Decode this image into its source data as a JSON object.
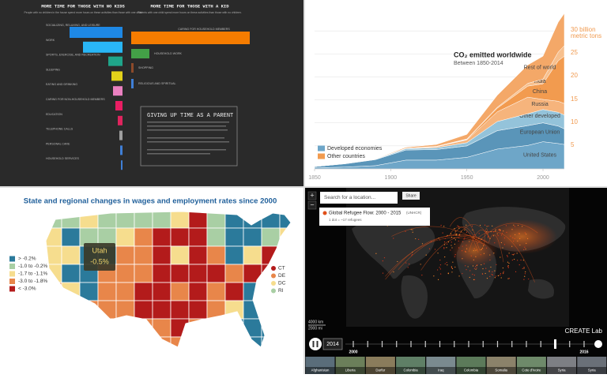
{
  "chart_data": [
    {
      "type": "bar",
      "direction": "left",
      "title": "MORE TIME FOR THOSE WITH NO KIDS",
      "subtitle": "People with no children in the house spend more hours on these activities than those with one child",
      "categories": [
        "SOCIALIZING, RELAXING, AND LEISURE",
        "WORK",
        "SPORTS, EXERCISE, AND RECREATION",
        "SLEEPING",
        "EATING AND DRINKING",
        "CARING FOR NON-HOUSEHOLD MEMBERS",
        "EDUCATION",
        "TELEPHONE CALLS",
        "PERSONAL CARE",
        "HOUSEHOLD SERVICES"
      ],
      "values": [
        67,
        50,
        18,
        14,
        12,
        9,
        6,
        4,
        3,
        2
      ],
      "colors": [
        "#1e88e5",
        "#29b6f6",
        "#1fa58a",
        "#e3d21a",
        "#ea80c0",
        "#e91e63",
        "#e0245e",
        "#9e9e9e",
        "#3f7fd6",
        "#3f7fd6"
      ],
      "xlim": [
        0,
        150
      ]
    },
    {
      "type": "bar",
      "direction": "right",
      "title": "MORE TIME FOR THOSE WITH A KID",
      "subtitle": "Parents with one child spend more hours on these activities than those with no children.",
      "categories": [
        "CARING FOR HOUSEHOLD MEMBERS",
        "HOUSEHOLD WORK",
        "SHOPPING",
        "RELIGIOUS AND SPIRITUAL"
      ],
      "values": [
        150,
        23,
        3,
        3
      ],
      "colors": [
        "#f57c00",
        "#43a047",
        "#8d4a2a",
        "#3f7fd6"
      ],
      "xlim": [
        0,
        150
      ]
    },
    {
      "type": "area",
      "stacked": true,
      "title": "CO₂ emitted worldwide",
      "subtitle": "Between 1850-2014",
      "x": [
        1850,
        1870,
        1890,
        1910,
        1930,
        1950,
        1970,
        1990,
        2000,
        2010,
        2014
      ],
      "xlim": [
        1850,
        2014
      ],
      "xticks": [
        1850,
        1900,
        1950,
        2000
      ],
      "ylim": [
        0,
        35
      ],
      "yticks": [
        5,
        10,
        15,
        20,
        25,
        {
          "value": 30,
          "label": "30 billion metric tons"
        }
      ],
      "series": [
        {
          "name": "United States",
          "color": "#6ea6c8",
          "values": [
            0.2,
            0.4,
            0.7,
            1.9,
            1.9,
            2.5,
            4.3,
            5.1,
            5.9,
            5.5,
            5.3
          ]
        },
        {
          "name": "European Union",
          "color": "#5a95b9",
          "values": [
            0.3,
            0.7,
            1.3,
            2.2,
            2.3,
            2.5,
            4.0,
            4.3,
            4.1,
            3.8,
            3.4
          ]
        },
        {
          "name": "Other developed",
          "color": "#94c3da",
          "values": [
            0,
            0.05,
            0.1,
            0.3,
            0.4,
            0.7,
            2.0,
            2.6,
            2.9,
            3.0,
            3.0
          ]
        },
        {
          "name": "Russia",
          "color": "#f6b47c",
          "values": [
            0,
            0,
            0.05,
            0.1,
            0.2,
            0.6,
            2.1,
            3.6,
            2.2,
            2.4,
            2.5
          ]
        },
        {
          "name": "China",
          "color": "#f29b4f",
          "values": [
            0,
            0,
            0,
            0,
            0.1,
            0.1,
            0.8,
            2.4,
            3.4,
            8.8,
            10.3
          ]
        },
        {
          "name": "India",
          "color": "#f7c08e",
          "values": [
            0,
            0,
            0,
            0,
            0,
            0.1,
            0.2,
            0.6,
            1.0,
            1.9,
            2.3
          ]
        },
        {
          "name": "Rest of world",
          "color": "#f4a868",
          "values": [
            0,
            0,
            0.05,
            0.2,
            0.4,
            1.0,
            2.6,
            4.0,
            5.0,
            6.5,
            7.0
          ]
        }
      ],
      "legend": [
        {
          "label": "Developed economies",
          "color": "#6ea6c8"
        },
        {
          "label": "Other countries",
          "color": "#f29b4f"
        }
      ]
    }
  ],
  "parent_note": {
    "title": "GIVING UP TIME AS A PARENT"
  },
  "wage_map": {
    "title": "State and regional changes in wages and employment rates since 2000",
    "legend": [
      {
        "label": "> -0.2%",
        "color": "#2b7a9b"
      },
      {
        "label": "-1.0 to -0.2%",
        "color": "#a9cfa4"
      },
      {
        "label": "-1.7 to -1.1%",
        "color": "#f6dd8e"
      },
      {
        "label": "-3.0 to -1.8%",
        "color": "#e8864a"
      },
      {
        "label": "< -3.0%",
        "color": "#b31b1b"
      }
    ],
    "tooltip": {
      "state": "Utah",
      "value": "-0.5%"
    },
    "small_states": [
      {
        "label": "CT",
        "color": "#b31b1b"
      },
      {
        "label": "DE",
        "color": "#e8864a"
      },
      {
        "label": "DC",
        "color": "#f6dd8e"
      },
      {
        "label": "RI",
        "color": "#a9cfa4"
      }
    ]
  },
  "refugee_map": {
    "search_placeholder": "Search for a location...",
    "share": "Share",
    "layer": "Global Refugee Flow: 2000 - 2015",
    "source": "(UNHCR)",
    "dot_note": "1 dot = ~17 refugees",
    "scale_km": "4000 km",
    "scale_mi": "2000 mi",
    "credit": "CREATE Lab",
    "current_year": "2014",
    "start_year": "2000",
    "end_year": "2016",
    "thumbnails": [
      "Afghanistan",
      "Liberia",
      "Darfur",
      "Colombia",
      "Iraq",
      "Colombia",
      "Somalia",
      "Cote d'Ivoire",
      "Syria",
      "Syria"
    ]
  }
}
